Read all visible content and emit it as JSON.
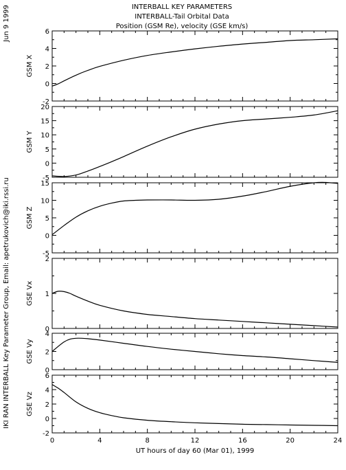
{
  "header": {
    "date_stamp": "Jun  9 1999",
    "title_line1": "INTERBALL KEY PARAMETERS",
    "title_line2": "INTERBALL-Tail Orbital Data",
    "title_line3": "Position (GSM Re), velocity (GSE km/s)"
  },
  "side_credit": "IKI RAN INTERBALL Key Parameter Group, Email: apetrukovich@iki.rssi.ru",
  "colors": {
    "line": "#000000",
    "frame": "#000000",
    "background": "#ffffff"
  },
  "chart_data": [
    {
      "type": "line",
      "ylabel": "GSM X",
      "ylim": [
        -2,
        6
      ],
      "yticks": [
        -2,
        0,
        2,
        4,
        6
      ],
      "xlim": [
        0,
        24
      ],
      "x": [
        0,
        0.5,
        1,
        2,
        3,
        4,
        6,
        8,
        10,
        12,
        14,
        16,
        18,
        20,
        22,
        24
      ],
      "series": [
        {
          "values": [
            -0.3,
            -0.05,
            0.3,
            0.95,
            1.5,
            1.95,
            2.65,
            3.2,
            3.6,
            3.95,
            4.25,
            4.5,
            4.7,
            4.9,
            5.0,
            5.1
          ]
        }
      ]
    },
    {
      "type": "line",
      "ylabel": "GSM Y",
      "ylim": [
        -5,
        20
      ],
      "yticks": [
        -5,
        0,
        5,
        10,
        15,
        20
      ],
      "xlim": [
        0,
        24
      ],
      "x": [
        0,
        1,
        2,
        3,
        4,
        5,
        6,
        8,
        10,
        12,
        14,
        16,
        18,
        20,
        22,
        24
      ],
      "series": [
        {
          "values": [
            -4.5,
            -4.7,
            -4.2,
            -2.8,
            -1.2,
            0.5,
            2.3,
            6.0,
            9.3,
            12.0,
            13.8,
            15.0,
            15.6,
            16.2,
            17.0,
            18.5
          ]
        }
      ]
    },
    {
      "type": "line",
      "ylabel": "GSM Z",
      "ylim": [
        -5,
        15
      ],
      "yticks": [
        -5,
        0,
        5,
        10,
        15
      ],
      "xlim": [
        0,
        24
      ],
      "x": [
        0,
        1,
        2,
        3,
        4,
        5,
        6,
        7,
        8,
        10,
        12,
        14,
        16,
        18,
        20,
        22,
        23,
        24
      ],
      "series": [
        {
          "values": [
            0.2,
            2.8,
            5.2,
            7.0,
            8.3,
            9.2,
            9.8,
            10.0,
            10.1,
            10.1,
            10.0,
            10.3,
            11.2,
            12.5,
            14.0,
            15.0,
            15.1,
            14.8
          ]
        }
      ]
    },
    {
      "type": "line",
      "ylabel": "GSE Vx",
      "ylim": [
        0,
        2
      ],
      "yticks": [
        0,
        1,
        2
      ],
      "xlim": [
        0,
        24
      ],
      "x": [
        0,
        0.5,
        1,
        1.5,
        2,
        3,
        4,
        6,
        8,
        10,
        12,
        14,
        16,
        18,
        20,
        22,
        24
      ],
      "series": [
        {
          "values": [
            1.0,
            1.06,
            1.05,
            1.0,
            0.92,
            0.78,
            0.66,
            0.5,
            0.4,
            0.34,
            0.28,
            0.24,
            0.2,
            0.16,
            0.12,
            0.08,
            0.04
          ]
        }
      ]
    },
    {
      "type": "line",
      "ylabel": "GSE Vy",
      "ylim": [
        0,
        4
      ],
      "yticks": [
        0,
        2,
        4
      ],
      "xlim": [
        0,
        24
      ],
      "x": [
        0,
        0.5,
        1,
        1.5,
        2,
        2.5,
        3,
        4,
        6,
        8,
        10,
        12,
        14,
        16,
        18,
        20,
        22,
        24
      ],
      "series": [
        {
          "values": [
            2.0,
            2.55,
            3.05,
            3.35,
            3.45,
            3.45,
            3.4,
            3.25,
            2.9,
            2.55,
            2.25,
            2.0,
            1.75,
            1.55,
            1.4,
            1.2,
            1.0,
            0.8
          ]
        }
      ]
    },
    {
      "type": "line",
      "ylabel": "GSE Vz",
      "ylim": [
        -2,
        6
      ],
      "yticks": [
        -2,
        0,
        2,
        4,
        6
      ],
      "xlim": [
        0,
        24
      ],
      "x": [
        0,
        0.5,
        1,
        2,
        3,
        4,
        5,
        6,
        8,
        10,
        12,
        14,
        16,
        18,
        20,
        22,
        24
      ],
      "series": [
        {
          "values": [
            4.7,
            4.2,
            3.6,
            2.3,
            1.4,
            0.8,
            0.4,
            0.1,
            -0.25,
            -0.45,
            -0.6,
            -0.7,
            -0.8,
            -0.85,
            -0.9,
            -0.95,
            -1.0
          ]
        }
      ]
    }
  ],
  "x_axis": {
    "ticks": [
      0,
      4,
      8,
      12,
      16,
      20,
      24
    ],
    "label": "UT hours of day  60 (Mar 01), 1999"
  }
}
